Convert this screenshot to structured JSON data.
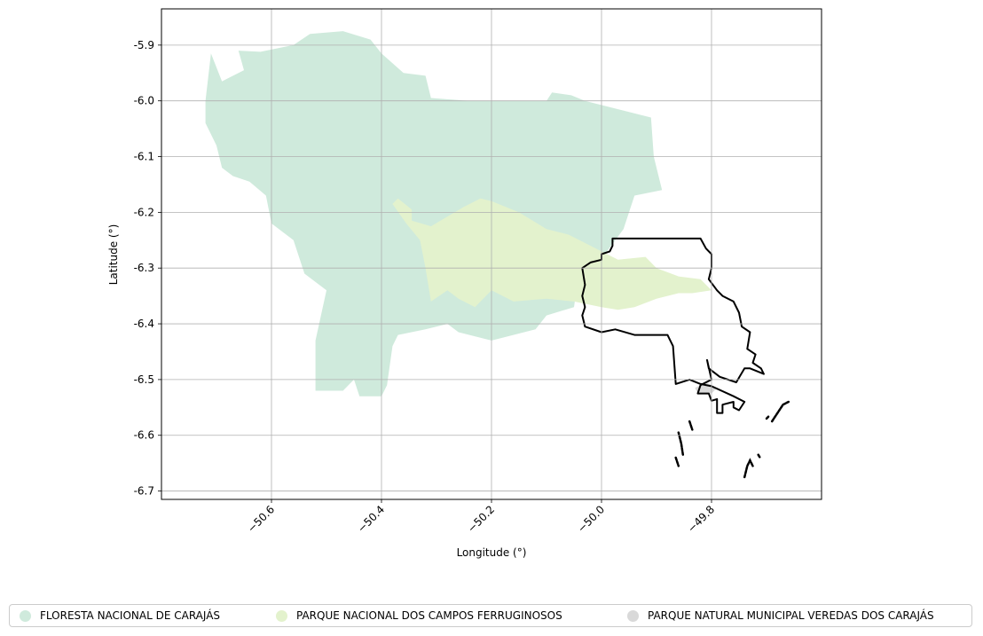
{
  "chart_data": {
    "type": "map",
    "title": "",
    "xlabel": "Longitude (°)",
    "ylabel": "Latitude (°)",
    "xlim": [
      -50.8,
      -49.6
    ],
    "ylim": [
      -6.715,
      -5.835
    ],
    "x_ticks": [
      -50.6,
      -50.4,
      -50.2,
      -50.0,
      -49.8
    ],
    "x_tick_labels": [
      "−50.6",
      "−50.4",
      "−50.2",
      "−50.0",
      "−49.8"
    ],
    "y_ticks": [
      -5.9,
      -6.0,
      -6.1,
      -6.2,
      -6.3,
      -6.4,
      -6.5,
      -6.6,
      -6.7
    ],
    "y_tick_labels": [
      "-5.9",
      "-6.0",
      "-6.1",
      "-6.2",
      "-6.3",
      "-6.4",
      "-6.5",
      "-6.6",
      "-6.7"
    ],
    "grid": true,
    "legend_position": "bottom",
    "series": [
      {
        "name": "FLORESTA NACIONAL DE CARAJÁS",
        "color": "#cfeadc",
        "polygon": [
          [
            -50.72,
            -6.0
          ],
          [
            -50.71,
            -5.915
          ],
          [
            -50.69,
            -5.965
          ],
          [
            -50.65,
            -5.945
          ],
          [
            -50.66,
            -5.91
          ],
          [
            -50.62,
            -5.912
          ],
          [
            -50.56,
            -5.9
          ],
          [
            -50.53,
            -5.88
          ],
          [
            -50.47,
            -5.875
          ],
          [
            -50.42,
            -5.89
          ],
          [
            -50.4,
            -5.915
          ],
          [
            -50.36,
            -5.95
          ],
          [
            -50.32,
            -5.955
          ],
          [
            -50.31,
            -5.995
          ],
          [
            -50.24,
            -6.0
          ],
          [
            -50.1,
            -6.0
          ],
          [
            -50.09,
            -5.985
          ],
          [
            -50.055,
            -5.99
          ],
          [
            -50.03,
            -6.0
          ],
          [
            -49.91,
            -6.03
          ],
          [
            -49.905,
            -6.1
          ],
          [
            -49.89,
            -6.16
          ],
          [
            -49.94,
            -6.17
          ],
          [
            -49.96,
            -6.23
          ],
          [
            -49.99,
            -6.27
          ],
          [
            -50.04,
            -6.3
          ],
          [
            -50.05,
            -6.37
          ],
          [
            -50.1,
            -6.385
          ],
          [
            -50.12,
            -6.41
          ],
          [
            -50.2,
            -6.43
          ],
          [
            -50.26,
            -6.415
          ],
          [
            -50.28,
            -6.4
          ],
          [
            -50.32,
            -6.41
          ],
          [
            -50.37,
            -6.42
          ],
          [
            -50.38,
            -6.44
          ],
          [
            -50.39,
            -6.51
          ],
          [
            -50.4,
            -6.53
          ],
          [
            -50.44,
            -6.53
          ],
          [
            -50.45,
            -6.5
          ],
          [
            -50.47,
            -6.52
          ],
          [
            -50.52,
            -6.52
          ],
          [
            -50.52,
            -6.43
          ],
          [
            -50.5,
            -6.34
          ],
          [
            -50.54,
            -6.31
          ],
          [
            -50.56,
            -6.25
          ],
          [
            -50.6,
            -6.22
          ],
          [
            -50.61,
            -6.17
          ],
          [
            -50.64,
            -6.145
          ],
          [
            -50.67,
            -6.135
          ],
          [
            -50.69,
            -6.12
          ],
          [
            -50.7,
            -6.08
          ],
          [
            -50.72,
            -6.04
          ]
        ]
      },
      {
        "name": "PARQUE NACIONAL DOS CAMPOS FERRUGINOSOS",
        "color": "#e3f2cd",
        "polygon": [
          [
            -50.37,
            -6.175
          ],
          [
            -50.345,
            -6.195
          ],
          [
            -50.345,
            -6.215
          ],
          [
            -50.31,
            -6.225
          ],
          [
            -50.25,
            -6.19
          ],
          [
            -50.22,
            -6.175
          ],
          [
            -50.2,
            -6.18
          ],
          [
            -50.15,
            -6.2
          ],
          [
            -50.1,
            -6.23
          ],
          [
            -50.06,
            -6.24
          ],
          [
            -50.03,
            -6.255
          ],
          [
            -50.0,
            -6.27
          ],
          [
            -49.97,
            -6.285
          ],
          [
            -49.92,
            -6.28
          ],
          [
            -49.9,
            -6.3
          ],
          [
            -49.86,
            -6.315
          ],
          [
            -49.82,
            -6.32
          ],
          [
            -49.8,
            -6.34
          ],
          [
            -49.835,
            -6.345
          ],
          [
            -49.86,
            -6.345
          ],
          [
            -49.9,
            -6.355
          ],
          [
            -49.94,
            -6.37
          ],
          [
            -49.97,
            -6.375
          ],
          [
            -50.0,
            -6.37
          ],
          [
            -50.05,
            -6.36
          ],
          [
            -50.1,
            -6.355
          ],
          [
            -50.16,
            -6.36
          ],
          [
            -50.2,
            -6.34
          ],
          [
            -50.23,
            -6.37
          ],
          [
            -50.26,
            -6.355
          ],
          [
            -50.28,
            -6.34
          ],
          [
            -50.31,
            -6.36
          ],
          [
            -50.32,
            -6.3
          ],
          [
            -50.33,
            -6.25
          ],
          [
            -50.355,
            -6.22
          ],
          [
            -50.38,
            -6.185
          ]
        ]
      },
      {
        "name": "PARQUE NATURAL MUNICIPAL VEREDAS DOS CARAJÁS",
        "color": "#d9d9d9",
        "polygon": [
          [
            -49.83,
            -6.515
          ],
          [
            -49.81,
            -6.505
          ],
          [
            -49.79,
            -6.515
          ],
          [
            -49.8,
            -6.525
          ],
          [
            -49.825,
            -6.525
          ]
        ]
      }
    ],
    "outline": {
      "color": "#000000",
      "polygon": [
        [
          -49.98,
          -6.247
        ],
        [
          -49.82,
          -6.247
        ],
        [
          -49.81,
          -6.265
        ],
        [
          -49.8,
          -6.275
        ],
        [
          -49.8,
          -6.3
        ],
        [
          -49.805,
          -6.32
        ],
        [
          -49.79,
          -6.34
        ],
        [
          -49.78,
          -6.35
        ],
        [
          -49.76,
          -6.36
        ],
        [
          -49.75,
          -6.38
        ],
        [
          -49.745,
          -6.405
        ],
        [
          -49.73,
          -6.415
        ],
        [
          -49.735,
          -6.445
        ],
        [
          -49.72,
          -6.455
        ],
        [
          -49.725,
          -6.47
        ],
        [
          -49.71,
          -6.48
        ],
        [
          -49.705,
          -6.49
        ],
        [
          -49.73,
          -6.48
        ],
        [
          -49.74,
          -6.48
        ],
        [
          -49.755,
          -6.505
        ],
        [
          -49.785,
          -6.495
        ],
        [
          -49.805,
          -6.48
        ],
        [
          -49.808,
          -6.465
        ],
        [
          -49.8,
          -6.5
        ],
        [
          -49.82,
          -6.51
        ],
        [
          -49.825,
          -6.525
        ],
        [
          -49.805,
          -6.525
        ],
        [
          -49.8,
          -6.538
        ],
        [
          -49.79,
          -6.535
        ],
        [
          -49.79,
          -6.56
        ],
        [
          -49.78,
          -6.56
        ],
        [
          -49.78,
          -6.545
        ],
        [
          -49.76,
          -6.54
        ],
        [
          -49.76,
          -6.55
        ],
        [
          -49.75,
          -6.555
        ],
        [
          -49.74,
          -6.54
        ],
        [
          -49.76,
          -6.53
        ],
        [
          -49.8,
          -6.512
        ],
        [
          -49.82,
          -6.508
        ],
        [
          -49.84,
          -6.5
        ],
        [
          -49.865,
          -6.508
        ],
        [
          -49.87,
          -6.44
        ],
        [
          -49.88,
          -6.42
        ],
        [
          -49.94,
          -6.42
        ],
        [
          -49.975,
          -6.41
        ],
        [
          -50.0,
          -6.415
        ],
        [
          -50.03,
          -6.405
        ],
        [
          -50.035,
          -6.385
        ],
        [
          -50.03,
          -6.37
        ],
        [
          -50.035,
          -6.35
        ],
        [
          -50.03,
          -6.33
        ],
        [
          -50.035,
          -6.3
        ],
        [
          -50.02,
          -6.29
        ],
        [
          -50.0,
          -6.285
        ],
        [
          -50.0,
          -6.275
        ],
        [
          -49.985,
          -6.27
        ],
        [
          -49.98,
          -6.26
        ]
      ],
      "fragments": [
        [
          [
            -49.86,
            -6.595
          ],
          [
            -49.855,
            -6.615
          ],
          [
            -49.852,
            -6.635
          ]
        ],
        [
          [
            -49.865,
            -6.64
          ],
          [
            -49.86,
            -6.655
          ]
        ],
        [
          [
            -49.74,
            -6.675
          ],
          [
            -49.735,
            -6.655
          ],
          [
            -49.73,
            -6.645
          ],
          [
            -49.725,
            -6.655
          ]
        ],
        [
          [
            -49.715,
            -6.635
          ],
          [
            -49.712,
            -6.64
          ]
        ],
        [
          [
            -49.69,
            -6.575
          ],
          [
            -49.68,
            -6.56
          ],
          [
            -49.67,
            -6.545
          ],
          [
            -49.66,
            -6.54
          ]
        ],
        [
          [
            -49.7,
            -6.57
          ],
          [
            -49.695,
            -6.565
          ]
        ],
        [
          [
            -49.84,
            -6.575
          ],
          [
            -49.835,
            -6.59
          ]
        ]
      ]
    }
  }
}
